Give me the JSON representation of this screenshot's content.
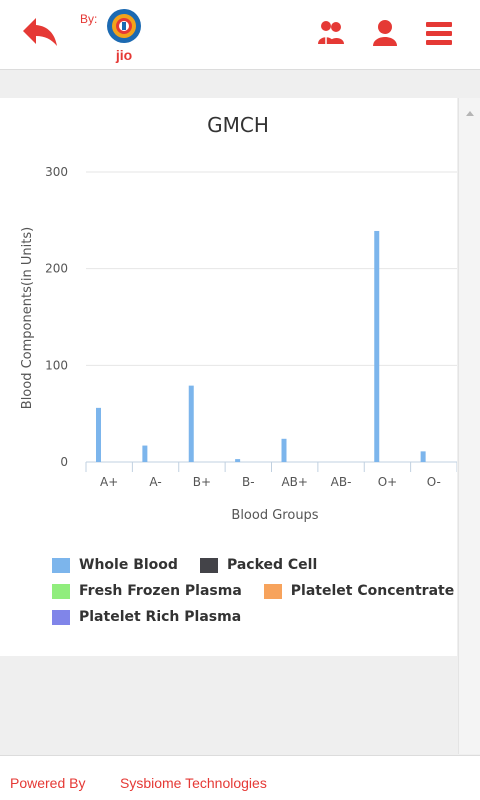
{
  "header": {
    "by_label": "By:",
    "logo_text": "jio",
    "accent_color": "#e53935",
    "icons": [
      "back-arrow-icon",
      "users-icon",
      "user-icon",
      "menu-icon"
    ]
  },
  "footer": {
    "powered_by": "Powered By",
    "company": "Sysbiome Technologies"
  },
  "chart_data": {
    "type": "bar",
    "title": "GMCH",
    "xlabel": "Blood Groups",
    "ylabel": "Blood Components(in Units)",
    "categories": [
      "A+",
      "A-",
      "B+",
      "B-",
      "AB+",
      "AB-",
      "O+",
      "O-"
    ],
    "ylim": [
      0,
      300
    ],
    "yticks": [
      0,
      100,
      200,
      300
    ],
    "grid": true,
    "legend_position": "bottom",
    "series": [
      {
        "name": "Whole Blood",
        "color": "#7cb5ec",
        "values": [
          56,
          17,
          79,
          3,
          24,
          0,
          239,
          11
        ]
      },
      {
        "name": "Packed Cell",
        "color": "#434348",
        "values": [
          0,
          0,
          0,
          0,
          0,
          0,
          0,
          0
        ]
      },
      {
        "name": "Fresh Frozen Plasma",
        "color": "#90ed7d",
        "values": [
          0,
          0,
          0,
          0,
          0,
          0,
          0,
          0
        ]
      },
      {
        "name": "Platelet Concentrate",
        "color": "#f7a35c",
        "values": [
          0,
          0,
          0,
          0,
          0,
          0,
          0,
          0
        ]
      },
      {
        "name": "Platelet Rich Plasma",
        "color": "#8085e9",
        "values": [
          0,
          0,
          0,
          0,
          0,
          0,
          0,
          0
        ]
      }
    ]
  }
}
